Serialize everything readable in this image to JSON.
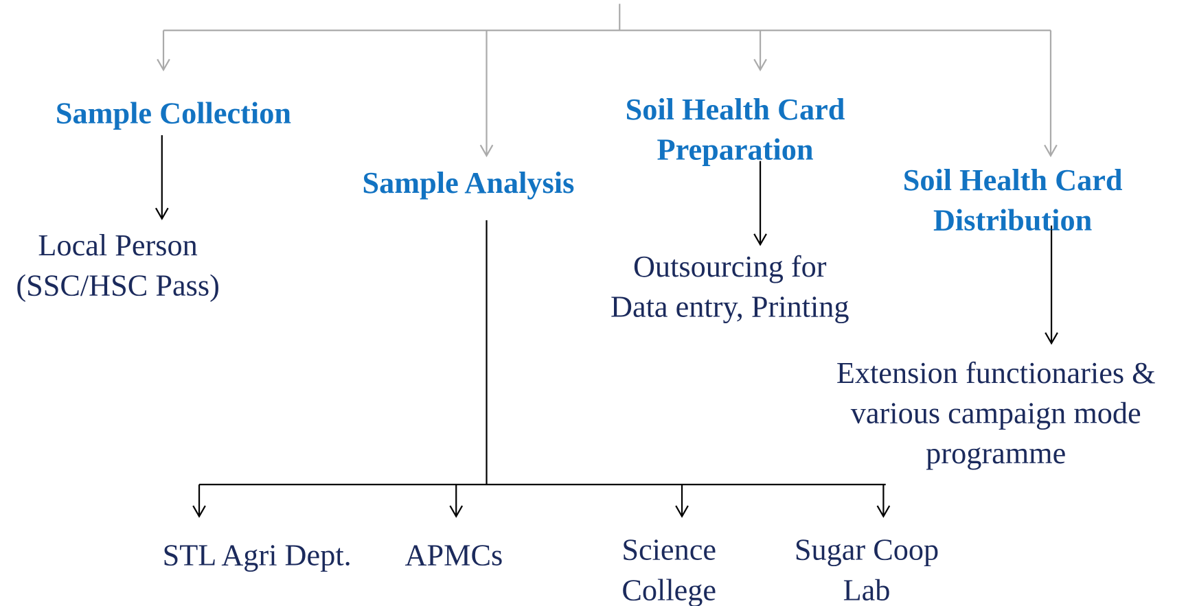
{
  "nodes": [
    {
      "lines": [
        "Sample Collection"
      ]
    },
    {
      "lines": [
        "Local Person",
        "(SSC/HSC Pass)"
      ]
    },
    {
      "lines": [
        "Sample Analysis"
      ]
    },
    {
      "lines": [
        "Soil Health Card",
        "Preparation"
      ]
    },
    {
      "lines": [
        "Outsourcing for",
        "Data entry, Printing"
      ]
    },
    {
      "lines": [
        "Soil Health Card",
        "Distribution"
      ]
    },
    {
      "lines": [
        "Extension functionaries &",
        "various campaign mode",
        "programme"
      ]
    },
    {
      "lines": [
        "STL Agri Dept."
      ]
    },
    {
      "lines": [
        "APMCs"
      ]
    },
    {
      "lines": [
        "Science",
        "College"
      ]
    },
    {
      "lines": [
        "Sugar Coop",
        "Lab"
      ]
    }
  ]
}
